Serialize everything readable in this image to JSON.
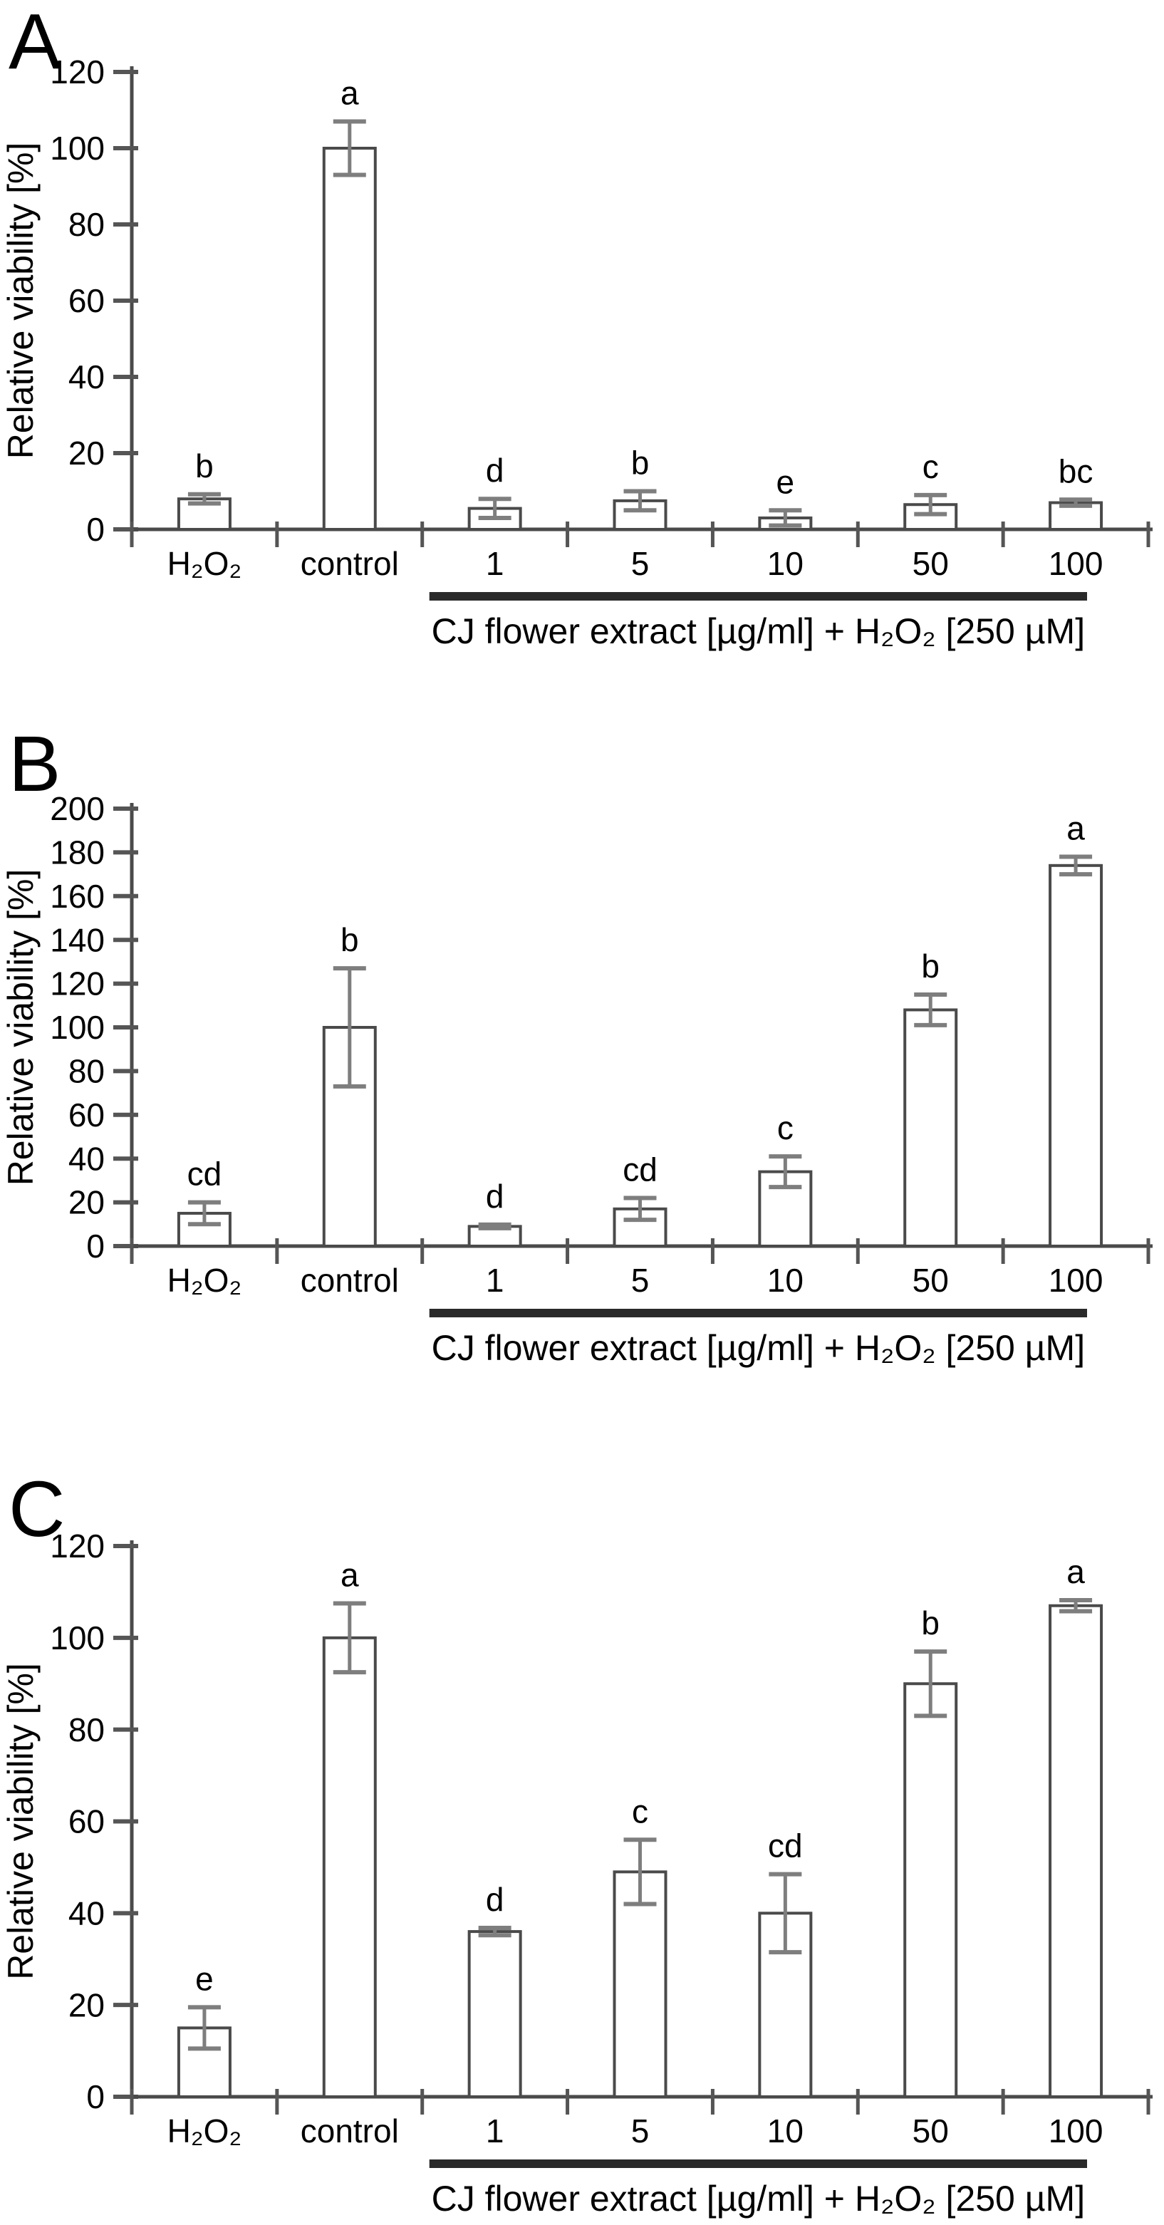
{
  "colors": {
    "background": "#ffffff",
    "bar_fill": "#ffffff",
    "bar_stroke": "#4a4a4a",
    "axis": "#4a4a4a",
    "tick": "#555555",
    "error_bar": "#7e7e7e",
    "text": "#000000",
    "group_line": "#2a2a2a"
  },
  "chart_data": [
    {
      "type": "bar",
      "panel_label": "A",
      "ylabel": "Relative viability [%]",
      "ylim": [
        0,
        120
      ],
      "ytick_step": 20,
      "ytick_labels": [
        "0",
        "20",
        "40",
        "60",
        "80",
        "100",
        "120"
      ],
      "categories": [
        "H₂O₂",
        "control",
        "1",
        "5",
        "10",
        "50",
        "100"
      ],
      "values": [
        8,
        100,
        5.5,
        7.5,
        3,
        6.5,
        7
      ],
      "errors": [
        1.2,
        7,
        2.5,
        2.5,
        2,
        2.5,
        0.8
      ],
      "sig_letters": [
        "b",
        "a",
        "d",
        "b",
        "e",
        "c",
        "bc"
      ],
      "group_label": "CJ flower extract [µg/ml] + H₂O₂ [250 µM]",
      "group_underline_categories": [
        "1",
        "5",
        "10",
        "50",
        "100"
      ],
      "legend": "none",
      "grid": false
    },
    {
      "type": "bar",
      "panel_label": "B",
      "ylabel": "Relative viability [%]",
      "ylim": [
        0,
        200
      ],
      "ytick_step": 20,
      "ytick_labels": [
        "0",
        "20",
        "40",
        "60",
        "80",
        "100",
        "120",
        "140",
        "160",
        "180",
        "200"
      ],
      "categories": [
        "H₂O₂",
        "control",
        "1",
        "5",
        "10",
        "50",
        "100"
      ],
      "values": [
        15,
        100,
        9,
        17,
        34,
        108,
        174
      ],
      "errors": [
        5,
        27,
        0.8,
        5,
        7,
        7,
        4
      ],
      "sig_letters": [
        "cd",
        "b",
        "d",
        "cd",
        "c",
        "b",
        "a"
      ],
      "group_label": "CJ flower extract [µg/ml] + H₂O₂ [250 µM]",
      "group_underline_categories": [
        "1",
        "5",
        "10",
        "50",
        "100"
      ],
      "legend": "none",
      "grid": false
    },
    {
      "type": "bar",
      "panel_label": "C",
      "ylabel": "Relative viability [%]",
      "ylim": [
        0,
        120
      ],
      "ytick_step": 20,
      "ytick_labels": [
        "0",
        "20",
        "40",
        "60",
        "80",
        "100",
        "120"
      ],
      "categories": [
        "H₂O₂",
        "control",
        "1",
        "5",
        "10",
        "50",
        "100"
      ],
      "values": [
        15,
        100,
        36,
        49,
        40,
        90,
        107
      ],
      "errors": [
        4.5,
        7.5,
        0.8,
        7,
        8.5,
        7,
        1.2
      ],
      "sig_letters": [
        "e",
        "a",
        "d",
        "c",
        "cd",
        "b",
        "a"
      ],
      "group_label": "CJ flower extract [µg/ml] + H₂O₂ [250 µM]",
      "group_underline_categories": [
        "1",
        "5",
        "10",
        "50",
        "100"
      ],
      "legend": "none",
      "grid": false
    }
  ]
}
